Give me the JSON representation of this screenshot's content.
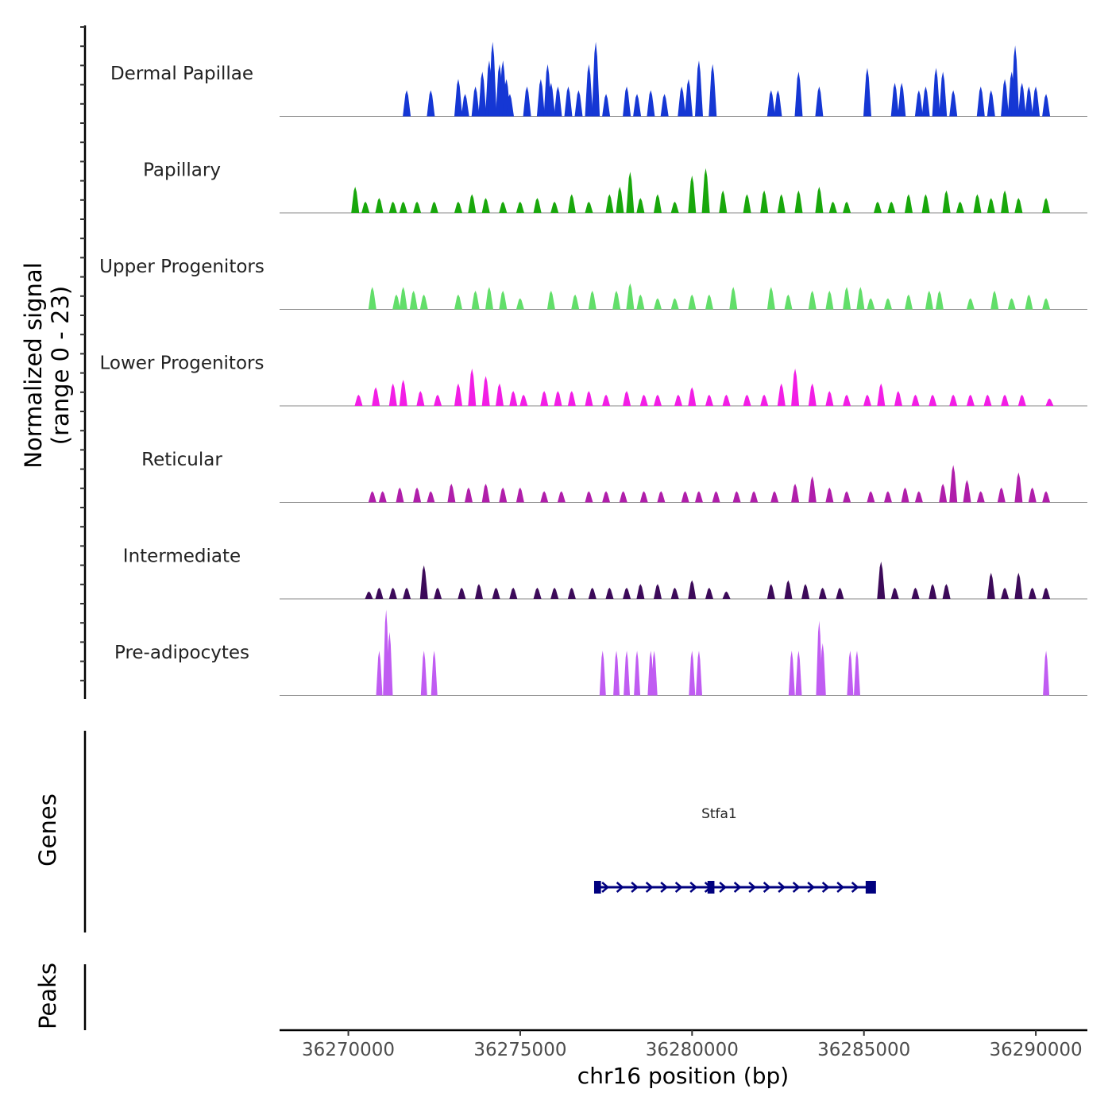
{
  "chart_data": {
    "type": "area",
    "title": "",
    "ylabel_line1": "Normalized signal",
    "ylabel_line2": "(range 0 - 23)",
    "y_range": [
      0,
      23
    ],
    "xlabel": "chr16 position (bp)",
    "xlim": [
      36268000,
      36291500
    ],
    "x_ticks": [
      36270000,
      36275000,
      36280000,
      36285000,
      36290000
    ],
    "x_tick_labels": [
      "36270000",
      "36275000",
      "36280000",
      "36285000",
      "36290000"
    ],
    "tracks": [
      {
        "name": "Dermal Papillae",
        "color": "#1537D4",
        "peaks": [
          [
            36271700,
            7
          ],
          [
            36272400,
            7
          ],
          [
            36273200,
            10
          ],
          [
            36273400,
            6
          ],
          [
            36273700,
            8
          ],
          [
            36273900,
            12
          ],
          [
            36274100,
            15
          ],
          [
            36274200,
            20
          ],
          [
            36274400,
            14
          ],
          [
            36274500,
            15
          ],
          [
            36274600,
            10
          ],
          [
            36274700,
            6
          ],
          [
            36275200,
            8
          ],
          [
            36275600,
            10
          ],
          [
            36275800,
            14
          ],
          [
            36275900,
            9
          ],
          [
            36276100,
            8
          ],
          [
            36276400,
            8
          ],
          [
            36276700,
            7
          ],
          [
            36277000,
            14
          ],
          [
            36277200,
            20
          ],
          [
            36277500,
            6
          ],
          [
            36278100,
            8
          ],
          [
            36278400,
            6
          ],
          [
            36278800,
            7
          ],
          [
            36279200,
            6
          ],
          [
            36279700,
            8
          ],
          [
            36279900,
            10
          ],
          [
            36280200,
            15
          ],
          [
            36280600,
            14
          ],
          [
            36282300,
            7
          ],
          [
            36282500,
            7
          ],
          [
            36283100,
            12
          ],
          [
            36283700,
            8
          ],
          [
            36285100,
            13
          ],
          [
            36285900,
            9
          ],
          [
            36286100,
            9
          ],
          [
            36286600,
            7
          ],
          [
            36286800,
            8
          ],
          [
            36287100,
            13
          ],
          [
            36287300,
            12
          ],
          [
            36287600,
            7
          ],
          [
            36288400,
            8
          ],
          [
            36288700,
            7
          ],
          [
            36289100,
            10
          ],
          [
            36289300,
            12
          ],
          [
            36289400,
            19
          ],
          [
            36289600,
            9
          ],
          [
            36289800,
            8
          ],
          [
            36290000,
            8
          ],
          [
            36290300,
            6
          ]
        ]
      },
      {
        "name": "Papillary",
        "color": "#18A70B",
        "peaks": [
          [
            36270200,
            7
          ],
          [
            36270500,
            3
          ],
          [
            36270900,
            4
          ],
          [
            36271300,
            3
          ],
          [
            36271600,
            3
          ],
          [
            36272000,
            3
          ],
          [
            36272500,
            3
          ],
          [
            36273200,
            3
          ],
          [
            36273600,
            5
          ],
          [
            36274000,
            4
          ],
          [
            36274500,
            3
          ],
          [
            36275000,
            3
          ],
          [
            36275500,
            4
          ],
          [
            36276000,
            3
          ],
          [
            36276500,
            5
          ],
          [
            36277000,
            3
          ],
          [
            36277600,
            5
          ],
          [
            36277900,
            7
          ],
          [
            36278200,
            11
          ],
          [
            36278500,
            4
          ],
          [
            36279000,
            5
          ],
          [
            36279500,
            3
          ],
          [
            36280000,
            10
          ],
          [
            36280400,
            12
          ],
          [
            36280900,
            6
          ],
          [
            36281600,
            5
          ],
          [
            36282100,
            6
          ],
          [
            36282600,
            5
          ],
          [
            36283100,
            6
          ],
          [
            36283700,
            7
          ],
          [
            36284100,
            3
          ],
          [
            36284500,
            3
          ],
          [
            36285400,
            3
          ],
          [
            36285800,
            3
          ],
          [
            36286300,
            5
          ],
          [
            36286800,
            5
          ],
          [
            36287400,
            6
          ],
          [
            36287800,
            3
          ],
          [
            36288300,
            5
          ],
          [
            36288700,
            4
          ],
          [
            36289100,
            6
          ],
          [
            36289500,
            4
          ],
          [
            36290300,
            4
          ]
        ]
      },
      {
        "name": "Upper Progenitors",
        "color": "#62DE6A",
        "peaks": [
          [
            36270700,
            6
          ],
          [
            36271400,
            4
          ],
          [
            36271600,
            6
          ],
          [
            36271900,
            5
          ],
          [
            36272200,
            4
          ],
          [
            36273200,
            4
          ],
          [
            36273700,
            5
          ],
          [
            36274100,
            6
          ],
          [
            36274500,
            5
          ],
          [
            36275000,
            3
          ],
          [
            36275900,
            5
          ],
          [
            36276600,
            4
          ],
          [
            36277100,
            5
          ],
          [
            36277800,
            5
          ],
          [
            36278200,
            7
          ],
          [
            36278500,
            4
          ],
          [
            36279000,
            3
          ],
          [
            36279500,
            3
          ],
          [
            36280000,
            4
          ],
          [
            36280500,
            4
          ],
          [
            36281200,
            6
          ],
          [
            36282300,
            6
          ],
          [
            36282800,
            4
          ],
          [
            36283500,
            5
          ],
          [
            36284000,
            5
          ],
          [
            36284500,
            6
          ],
          [
            36284900,
            6
          ],
          [
            36285200,
            3
          ],
          [
            36285700,
            3
          ],
          [
            36286300,
            4
          ],
          [
            36286900,
            5
          ],
          [
            36287200,
            5
          ],
          [
            36288100,
            3
          ],
          [
            36288800,
            5
          ],
          [
            36289300,
            3
          ],
          [
            36289800,
            4
          ],
          [
            36290300,
            3
          ]
        ]
      },
      {
        "name": "Lower Progenitors",
        "color": "#F21EE5",
        "peaks": [
          [
            36270300,
            3
          ],
          [
            36270800,
            5
          ],
          [
            36271300,
            6
          ],
          [
            36271600,
            7
          ],
          [
            36272100,
            4
          ],
          [
            36272600,
            3
          ],
          [
            36273200,
            6
          ],
          [
            36273600,
            10
          ],
          [
            36274000,
            8
          ],
          [
            36274400,
            6
          ],
          [
            36274800,
            4
          ],
          [
            36275100,
            3
          ],
          [
            36275700,
            4
          ],
          [
            36276100,
            4
          ],
          [
            36276500,
            4
          ],
          [
            36277000,
            4
          ],
          [
            36277500,
            3
          ],
          [
            36278100,
            4
          ],
          [
            36278600,
            3
          ],
          [
            36279000,
            3
          ],
          [
            36279600,
            3
          ],
          [
            36280000,
            5
          ],
          [
            36280500,
            3
          ],
          [
            36281000,
            3
          ],
          [
            36281600,
            3
          ],
          [
            36282100,
            3
          ],
          [
            36282600,
            6
          ],
          [
            36283000,
            10
          ],
          [
            36283500,
            6
          ],
          [
            36284000,
            4
          ],
          [
            36284500,
            3
          ],
          [
            36285100,
            3
          ],
          [
            36285500,
            6
          ],
          [
            36286000,
            4
          ],
          [
            36286500,
            3
          ],
          [
            36287000,
            3
          ],
          [
            36287600,
            3
          ],
          [
            36288100,
            3
          ],
          [
            36288600,
            3
          ],
          [
            36289100,
            3
          ],
          [
            36289600,
            3
          ],
          [
            36290400,
            2
          ]
        ]
      },
      {
        "name": "Reticular",
        "color": "#B01EAA",
        "peaks": [
          [
            36270700,
            3
          ],
          [
            36271000,
            3
          ],
          [
            36271500,
            4
          ],
          [
            36272000,
            4
          ],
          [
            36272400,
            3
          ],
          [
            36273000,
            5
          ],
          [
            36273500,
            4
          ],
          [
            36274000,
            5
          ],
          [
            36274500,
            4
          ],
          [
            36275000,
            4
          ],
          [
            36275700,
            3
          ],
          [
            36276200,
            3
          ],
          [
            36277000,
            3
          ],
          [
            36277500,
            3
          ],
          [
            36278000,
            3
          ],
          [
            36278600,
            3
          ],
          [
            36279100,
            3
          ],
          [
            36279800,
            3
          ],
          [
            36280200,
            3
          ],
          [
            36280700,
            3
          ],
          [
            36281300,
            3
          ],
          [
            36281800,
            3
          ],
          [
            36282400,
            3
          ],
          [
            36283000,
            5
          ],
          [
            36283500,
            7
          ],
          [
            36284000,
            4
          ],
          [
            36284500,
            3
          ],
          [
            36285200,
            3
          ],
          [
            36285700,
            3
          ],
          [
            36286200,
            4
          ],
          [
            36286600,
            3
          ],
          [
            36287300,
            5
          ],
          [
            36287600,
            10
          ],
          [
            36288000,
            6
          ],
          [
            36288400,
            3
          ],
          [
            36289000,
            4
          ],
          [
            36289500,
            8
          ],
          [
            36289900,
            4
          ],
          [
            36290300,
            3
          ]
        ]
      },
      {
        "name": "Intermediate",
        "color": "#3C0A59",
        "peaks": [
          [
            36270600,
            2
          ],
          [
            36270900,
            3
          ],
          [
            36271300,
            3
          ],
          [
            36271700,
            3
          ],
          [
            36272200,
            9
          ],
          [
            36272600,
            3
          ],
          [
            36273300,
            3
          ],
          [
            36273800,
            4
          ],
          [
            36274300,
            3
          ],
          [
            36274800,
            3
          ],
          [
            36275500,
            3
          ],
          [
            36276000,
            3
          ],
          [
            36276500,
            3
          ],
          [
            36277100,
            3
          ],
          [
            36277600,
            3
          ],
          [
            36278100,
            3
          ],
          [
            36278500,
            4
          ],
          [
            36279000,
            4
          ],
          [
            36279500,
            3
          ],
          [
            36280000,
            5
          ],
          [
            36280500,
            3
          ],
          [
            36281000,
            2
          ],
          [
            36282300,
            4
          ],
          [
            36282800,
            5
          ],
          [
            36283300,
            4
          ],
          [
            36283800,
            3
          ],
          [
            36284300,
            3
          ],
          [
            36285500,
            10
          ],
          [
            36285900,
            3
          ],
          [
            36286500,
            3
          ],
          [
            36287000,
            4
          ],
          [
            36287400,
            4
          ],
          [
            36288700,
            7
          ],
          [
            36289100,
            3
          ],
          [
            36289500,
            7
          ],
          [
            36289900,
            3
          ],
          [
            36290300,
            3
          ]
        ]
      },
      {
        "name": "Pre-adipocytes",
        "color": "#C05CF2",
        "peaks": [
          [
            36270900,
            12
          ],
          [
            36271100,
            23
          ],
          [
            36271200,
            17
          ],
          [
            36272200,
            12
          ],
          [
            36272500,
            12
          ],
          [
            36277400,
            12
          ],
          [
            36277800,
            12
          ],
          [
            36278100,
            12
          ],
          [
            36278400,
            12
          ],
          [
            36278800,
            12
          ],
          [
            36278900,
            12
          ],
          [
            36280000,
            12
          ],
          [
            36280200,
            12
          ],
          [
            36282900,
            12
          ],
          [
            36283100,
            12
          ],
          [
            36283800,
            14
          ],
          [
            36283700,
            20
          ],
          [
            36284600,
            12
          ],
          [
            36284800,
            12
          ],
          [
            36290300,
            12
          ]
        ]
      }
    ],
    "genes": [
      {
        "name": "Stfa1",
        "start": 36277200,
        "end": 36285300,
        "strand": "+",
        "color": "#00007F",
        "exons": [
          [
            36277150,
            36277350
          ],
          [
            36280450,
            36280650
          ],
          [
            36285050,
            36285350
          ]
        ]
      }
    ],
    "genes_label": "Genes",
    "peaks_label": "Peaks",
    "peaks": []
  }
}
